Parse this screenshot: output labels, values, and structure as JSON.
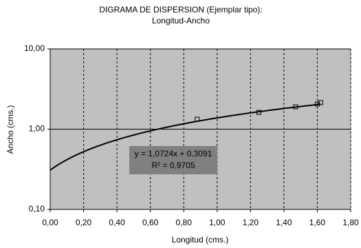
{
  "chart_data": {
    "type": "scatter",
    "title": "DIGRAMA DE DISPERSION (Ejemplar tipo):",
    "subtitle": "Longitud-Ancho",
    "x_label": "Longitud (cms.)",
    "y_label": "Ancho (cms.)",
    "x": [
      0.88,
      1.25,
      1.47,
      1.6,
      1.62
    ],
    "values": [
      1.33,
      1.62,
      1.9,
      2.06,
      2.14
    ],
    "color": "#000000",
    "xlim": [
      0,
      1.8
    ],
    "ylim": [
      0.1,
      10
    ],
    "y_scale": "log",
    "xticks": [
      {
        "value": 0,
        "label": "0,00"
      },
      {
        "value": 0.2,
        "label": "0,20"
      },
      {
        "value": 0.4,
        "label": "0,40"
      },
      {
        "value": 0.6,
        "label": "0,60"
      },
      {
        "value": 0.8,
        "label": "0,80"
      },
      {
        "value": 1,
        "label": "1,00"
      },
      {
        "value": 1.2,
        "label": "1,20"
      },
      {
        "value": 1.4,
        "label": "1,40"
      },
      {
        "value": 1.6,
        "label": "1,60"
      },
      {
        "value": 1.8,
        "label": "1,80"
      }
    ],
    "yticks": [
      {
        "value": 0.1,
        "label": "0,10"
      },
      {
        "value": 1,
        "label": "1,00"
      },
      {
        "value": 10,
        "label": "10,00"
      }
    ],
    "grid": true,
    "trendline": {
      "slope": 1.0724,
      "intercept": 0.3091,
      "equation": "y = 1,0724x + 0,3091",
      "r_squared_label": "R² = 0,9705"
    }
  }
}
